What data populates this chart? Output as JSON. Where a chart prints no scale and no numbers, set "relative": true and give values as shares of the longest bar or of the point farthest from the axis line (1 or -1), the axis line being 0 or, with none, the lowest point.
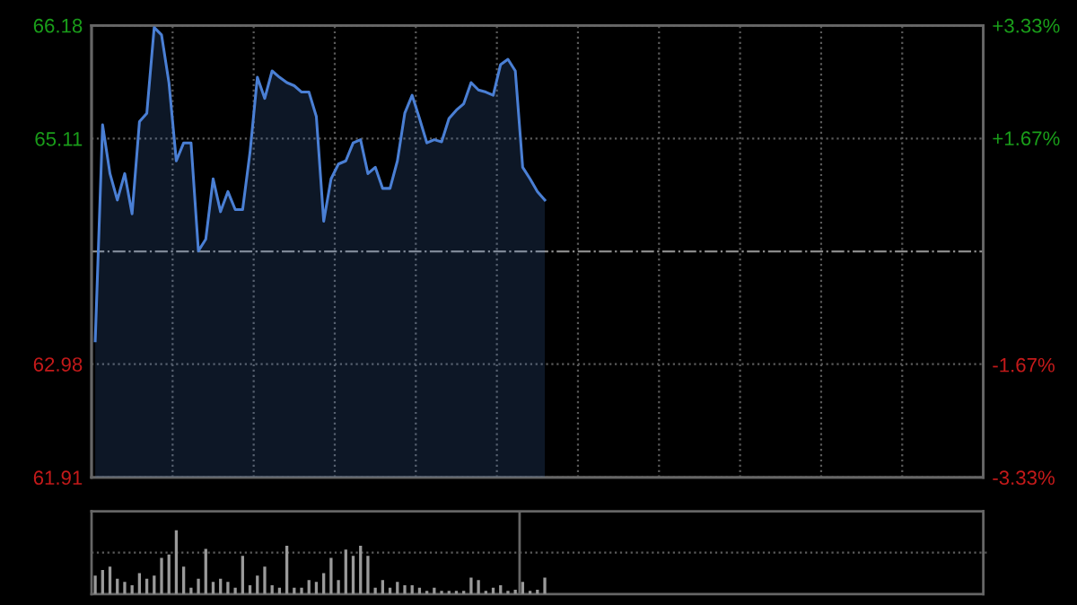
{
  "chart_data": [
    {
      "type": "area",
      "categories": [
        null,
        null,
        null,
        null,
        null,
        null,
        null,
        null,
        null,
        null,
        null,
        null,
        null,
        null,
        null,
        null,
        null,
        null,
        null,
        null,
        null,
        null,
        null,
        null,
        null,
        null,
        null,
        null,
        null,
        null,
        null,
        null,
        null,
        null,
        null,
        null,
        null,
        null,
        null,
        null,
        null,
        null,
        null,
        null,
        null,
        null,
        null,
        null,
        null,
        null,
        null,
        null,
        null,
        null,
        null,
        null,
        null,
        null,
        null,
        null,
        null,
        null
      ],
      "series": [
        {
          "color": "#4a7fd4",
          "values": [
            63.2,
            65.24,
            64.78,
            64.53,
            64.78,
            64.4,
            65.27,
            65.35,
            66.16,
            66.09,
            65.64,
            64.9,
            65.07,
            65.07,
            64.05,
            64.16,
            64.73,
            64.42,
            64.61,
            64.44,
            64.44,
            64.98,
            65.69,
            65.49,
            65.75,
            65.69,
            65.64,
            65.61,
            65.55,
            65.55,
            65.32,
            64.33,
            64.73,
            64.87,
            64.9,
            65.07,
            65.1,
            64.78,
            64.84,
            64.64,
            64.64,
            64.9,
            65.35,
            65.52,
            65.3,
            65.07,
            65.1,
            65.08,
            65.3,
            65.38,
            65.44,
            65.64,
            65.57,
            65.55,
            65.52,
            65.81,
            65.86,
            65.75,
            64.84,
            64.73,
            64.61,
            64.53
          ]
        }
      ],
      "ylim": [
        61.91,
        66.18
      ],
      "yticks": [
        61.91,
        62.98,
        65.11,
        66.18
      ],
      "y2lim": [
        -3.33,
        3.33
      ],
      "y2ticks": [
        {
          "value": -3.33,
          "label": "-3.33%"
        },
        {
          "value": -1.67,
          "label": "-1.67%"
        },
        {
          "value": 1.67,
          "label": "+1.67%"
        },
        {
          "value": 3.33,
          "label": "+3.33%"
        }
      ],
      "ref_lines": [
        {
          "axis": "y2",
          "value": 0,
          "color": "#8a8a8a",
          "line_style": "dashdot"
        }
      ],
      "grid": true
    },
    {
      "type": "bar",
      "relative": true,
      "grid": true,
      "color": "#9a9a9a",
      "ref_lines": [
        {
          "axis": "y",
          "value": 0.65,
          "color": "#5a5a5a",
          "line_style": "dotted"
        }
      ],
      "categories": [
        null,
        null,
        null,
        null,
        null,
        null,
        null,
        null,
        null,
        null,
        null,
        null,
        null,
        null,
        null,
        null,
        null,
        null,
        null,
        null,
        null,
        null,
        null,
        null,
        null,
        null,
        null,
        null,
        null,
        null,
        null,
        null,
        null,
        null,
        null,
        null,
        null,
        null,
        null,
        null,
        null,
        null,
        null,
        null,
        null,
        null,
        null,
        null,
        null,
        null,
        null,
        null,
        null,
        null,
        null,
        null,
        null,
        null,
        null,
        null,
        null,
        null
      ],
      "values": [
        0.29,
        0.38,
        0.43,
        0.24,
        0.19,
        0.14,
        0.33,
        0.24,
        0.29,
        0.57,
        0.62,
        1.0,
        0.43,
        0.1,
        0.24,
        0.71,
        0.19,
        0.24,
        0.19,
        0.1,
        0.6,
        0.14,
        0.29,
        0.43,
        0.14,
        0.1,
        0.76,
        0.1,
        0.1,
        0.22,
        0.19,
        0.33,
        0.57,
        0.22,
        0.7,
        0.6,
        0.76,
        0.6,
        0.1,
        0.22,
        0.1,
        0.19,
        0.14,
        0.14,
        0.1,
        0.05,
        0.1,
        0.05,
        0.05,
        0.05,
        0.05,
        0.26,
        0.22,
        0.05,
        0.1,
        0.14,
        0.05,
        0.07,
        0.19,
        0.05,
        0.07,
        0.26
      ]
    }
  ]
}
